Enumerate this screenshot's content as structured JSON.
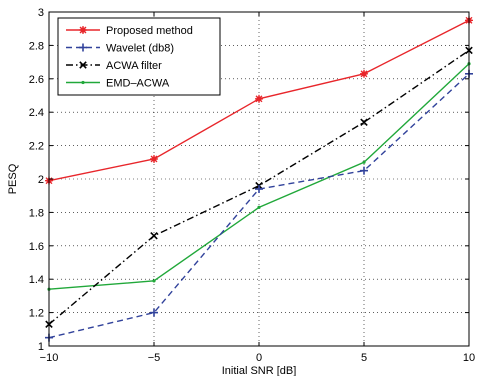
{
  "chart_data": {
    "type": "line",
    "title": "",
    "xlabel": "Initial SNR [dB]",
    "ylabel": "PESQ",
    "xlim": [
      -10,
      10
    ],
    "ylim": [
      1,
      3
    ],
    "x_ticks": [
      "-10",
      "-5",
      "0",
      "5",
      "10"
    ],
    "y_ticks": [
      "1",
      "1.2",
      "1.4",
      "1.6",
      "1.8",
      "2",
      "2.2",
      "2.4",
      "2.6",
      "2.8",
      "3"
    ],
    "grid": true,
    "legend_position": "top-left",
    "series": [
      {
        "name": "Proposed method",
        "color": "#e8262b",
        "dash": "solid",
        "marker": "asterisk",
        "x": [
          -10,
          -5,
          0,
          5,
          10
        ],
        "values": [
          1.99,
          2.12,
          2.48,
          2.63,
          2.95
        ]
      },
      {
        "name": "Wavelet (db8)",
        "color": "#31429b",
        "dash": "dashed",
        "marker": "plus",
        "x": [
          -10,
          -5,
          0,
          5,
          10
        ],
        "values": [
          1.05,
          1.2,
          1.94,
          2.05,
          2.63
        ]
      },
      {
        "name": "ACWA filter",
        "color": "#000000",
        "dash": "dashdot",
        "marker": "cross",
        "x": [
          -10,
          -5,
          0,
          5,
          10
        ],
        "values": [
          1.13,
          1.66,
          1.96,
          2.34,
          2.77
        ]
      },
      {
        "name": "EMD–ACWA",
        "color": "#21a83a",
        "dash": "solid",
        "marker": "dot",
        "x": [
          -10,
          -5,
          0,
          5,
          10
        ],
        "values": [
          1.34,
          1.39,
          1.83,
          2.1,
          2.69
        ]
      }
    ]
  }
}
